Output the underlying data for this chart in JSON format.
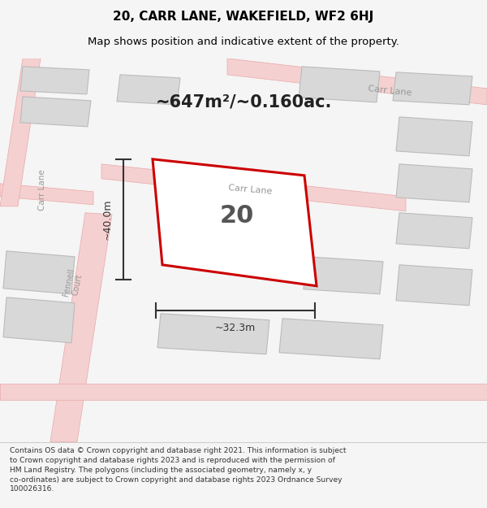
{
  "title_line1": "20, CARR LANE, WAKEFIELD, WF2 6HJ",
  "title_line2": "Map shows position and indicative extent of the property.",
  "area_text": "~647m²/~0.160ac.",
  "property_number": "20",
  "dim_width": "~32.3m",
  "dim_height": "~40.0m",
  "footer_text": "Contains OS data © Crown copyright and database right 2021. This information is subject to Crown copyright and database rights 2023 and is reproduced with the permission of HM Land Registry. The polygons (including the associated geometry, namely x, y co-ordinates) are subject to Crown copyright and database rights 2023 Ordnance Survey 100026316.",
  "bg_color": "#f5f5f5",
  "map_bg": "#ffffff",
  "road_color": "#f5d0d0",
  "road_stroke": "#e8a8a8",
  "building_fill": "#d8d8d8",
  "building_stroke": "#bbbbbb",
  "property_stroke": "#cc0000",
  "property_fill": "#ffffff",
  "road_label_color": "#999999",
  "title_color": "#000000",
  "footer_color": "#333333"
}
